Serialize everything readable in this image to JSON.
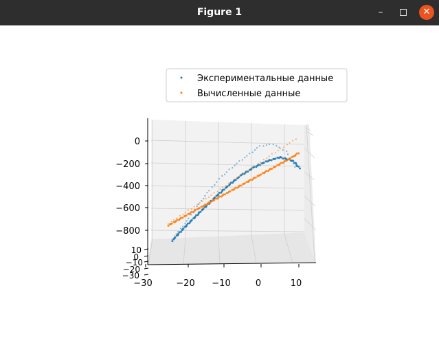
{
  "window": {
    "title": "Figure 1",
    "minimize_glyph": "–",
    "close_glyph": "✕"
  },
  "chart_data": {
    "type": "scatter",
    "projection": "3d",
    "grid": true,
    "legend_placement": "top",
    "ticks": {
      "x": [
        "−30",
        "−20",
        "−10",
        "0",
        "10"
      ],
      "z": [
        "0",
        "−200",
        "−400",
        "−600",
        "−800"
      ],
      "y": [
        "10",
        "0",
        "−10",
        "−20",
        "−30"
      ]
    },
    "series": [
      {
        "name": "Экспериментальные данные",
        "color": "#1f77b4",
        "curves": [
          {
            "x": [
              -28,
              -25,
              -22,
              -18,
              -14,
              -10,
              -6,
              -2,
              2,
              6,
              10,
              12
            ],
            "z": [
              -915,
              -820,
              -730,
              -615,
              -500,
              -395,
              -300,
              -225,
              -165,
              -125,
              -155,
              -225
            ]
          },
          {
            "x": [
              -28,
              -24,
              -20,
              -16,
              -12,
              -8,
              -4,
              0,
              4,
              8,
              11
            ],
            "z": [
              -900,
              -760,
              -600,
              -450,
              -320,
              -215,
              -125,
              -35,
              -10,
              -70,
              -230
            ]
          }
        ]
      },
      {
        "name": "Вычисленные данные",
        "color": "#ff7f0e",
        "curves": [
          {
            "x": [
              -29,
              -20,
              -10,
              0,
              10,
              12
            ],
            "z": [
              -780,
              -625,
              -455,
              -285,
              -115,
              -70
            ]
          },
          {
            "x": [
              -29,
              -20,
              -10,
              0,
              10,
              12
            ],
            "z": [
              -765,
              -585,
              -380,
              -175,
              25,
              65
            ]
          }
        ]
      }
    ]
  }
}
